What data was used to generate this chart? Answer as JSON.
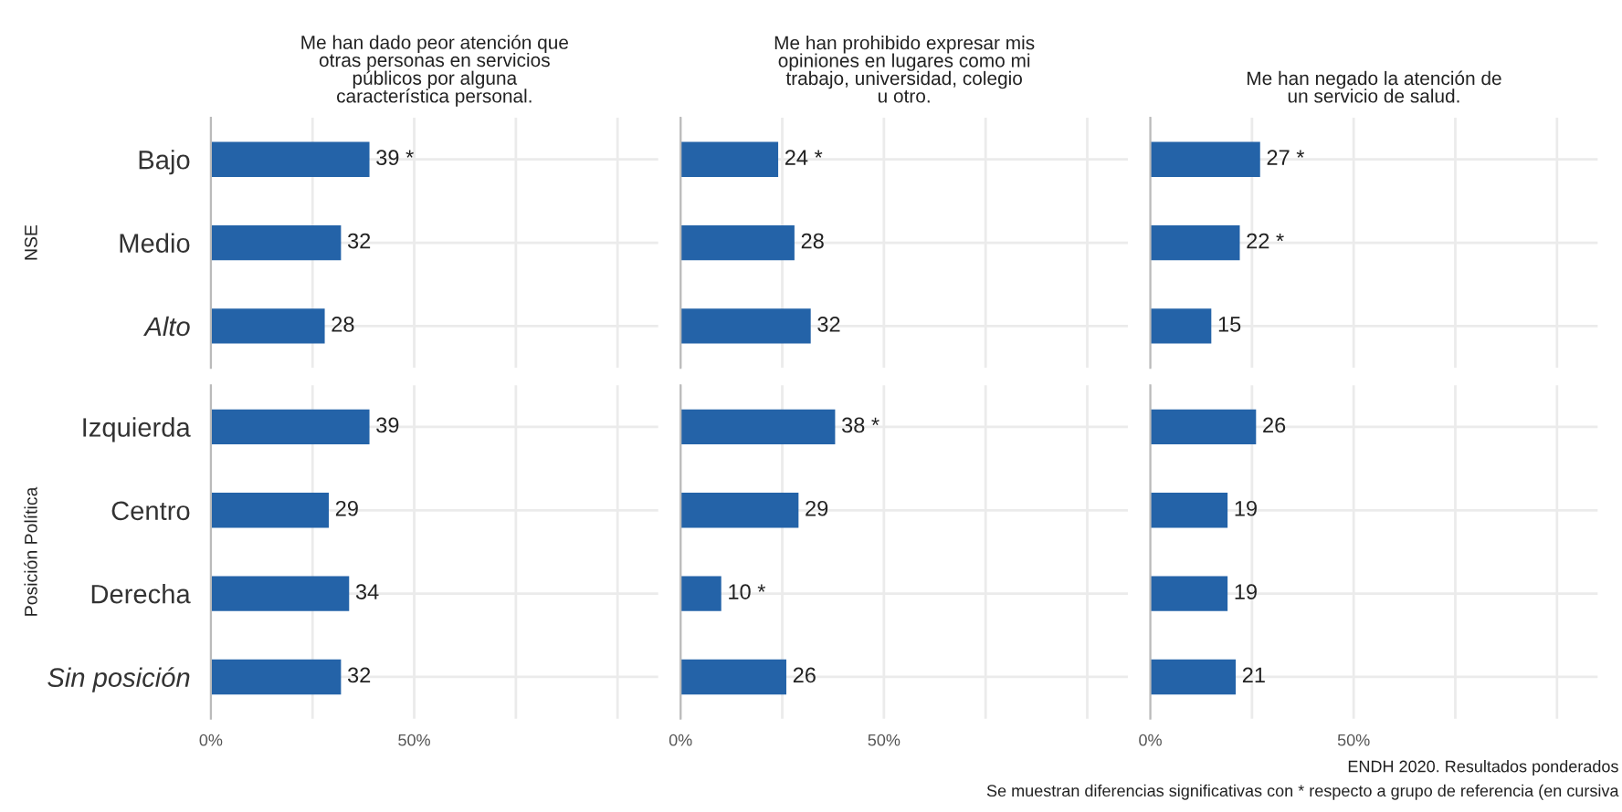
{
  "chart_data": [
    {
      "type": "bar",
      "orientation": "horizontal",
      "title": "Me han dado peor atención que\notras personas en servicios\npúblicos por alguna\ncaracterística personal.",
      "ylabel": "NSE",
      "categories": [
        "Bajo",
        "Medio",
        "Alto"
      ],
      "values": [
        39,
        32,
        28
      ],
      "value_labels": [
        "39 *",
        "32",
        "28"
      ],
      "color": "#2463a8",
      "xlim": [
        0,
        110
      ],
      "xticks": [
        {
          "value": 0,
          "label": null
        },
        {
          "value": 25,
          "label": null
        },
        {
          "value": 50,
          "label": null
        },
        {
          "value": 75,
          "label": null
        },
        {
          "value": 100,
          "label": null
        }
      ],
      "grid": true,
      "tick_labels": "y"
    },
    {
      "type": "bar",
      "orientation": "horizontal",
      "title": "Me han prohibido expresar mis\nopiniones en lugares como mi\ntrabajo, universidad, colegio\nu otro.",
      "categories": [
        null,
        null,
        null
      ],
      "values": [
        24,
        28,
        32
      ],
      "value_labels": [
        "24 *",
        "28",
        "32"
      ],
      "color": "#2463a8",
      "xlim": [
        0,
        110
      ],
      "xticks": [
        {
          "value": 0,
          "label": null
        },
        {
          "value": 25,
          "label": null
        },
        {
          "value": 50,
          "label": null
        },
        {
          "value": 75,
          "label": null
        },
        {
          "value": 100,
          "label": null
        }
      ],
      "grid": true,
      "tick_labels": false
    },
    {
      "type": "bar",
      "orientation": "horizontal",
      "title": "Me han negado la atención de\nun servicio de salud.",
      "categories": [
        null,
        null,
        null
      ],
      "values": [
        27,
        22,
        15
      ],
      "value_labels": [
        "27 *",
        "22 *",
        "15"
      ],
      "color": "#2463a8",
      "xlim": [
        0,
        110
      ],
      "xticks": [
        {
          "value": 0,
          "label": null
        },
        {
          "value": 25,
          "label": null
        },
        {
          "value": 50,
          "label": null
        },
        {
          "value": 75,
          "label": null
        },
        {
          "value": 100,
          "label": null
        }
      ],
      "grid": true,
      "tick_labels": false
    },
    {
      "type": "bar",
      "orientation": "horizontal",
      "ylabel": "Posición Política",
      "categories": [
        "Izquierda",
        "Centro",
        "Derecha",
        "Sin posición"
      ],
      "values": [
        39,
        29,
        34,
        32
      ],
      "value_labels": [
        "39",
        "29",
        "34",
        "32"
      ],
      "color": "#2463a8",
      "xlim": [
        0,
        110
      ],
      "xticks": [
        {
          "value": 0,
          "label": "0%"
        },
        {
          "value": 25,
          "label": null
        },
        {
          "value": 50,
          "label": "50%"
        },
        {
          "value": 75,
          "label": null
        },
        {
          "value": 100,
          "label": null
        }
      ],
      "grid": true
    },
    {
      "type": "bar",
      "orientation": "horizontal",
      "categories": [
        null,
        null,
        null,
        null
      ],
      "values": [
        38,
        29,
        10,
        26
      ],
      "value_labels": [
        "38 *",
        "29",
        "10 *",
        "26"
      ],
      "color": "#2463a8",
      "xlim": [
        0,
        110
      ],
      "xticks": [
        {
          "value": 0,
          "label": "0%"
        },
        {
          "value": 25,
          "label": null
        },
        {
          "value": 50,
          "label": "50%"
        },
        {
          "value": 75,
          "label": null
        },
        {
          "value": 100,
          "label": null
        }
      ],
      "grid": true,
      "tick_labels": "x"
    },
    {
      "type": "bar",
      "orientation": "horizontal",
      "categories": [
        null,
        null,
        null,
        null
      ],
      "values": [
        26,
        19,
        19,
        21
      ],
      "value_labels": [
        "26",
        "19",
        "19",
        "21"
      ],
      "color": "#2463a8",
      "xlim": [
        0,
        110
      ],
      "xticks": [
        {
          "value": 0,
          "label": "0%"
        },
        {
          "value": 25,
          "label": null
        },
        {
          "value": 50,
          "label": "50%"
        },
        {
          "value": 75,
          "label": null
        },
        {
          "value": 100,
          "label": null
        }
      ],
      "grid": true,
      "tick_labels": "x",
      "annotations": [
        "ENDH 2020. Resultados ponderados",
        "Se muestran diferencias significativas con * respecto a grupo de referencia (en cursiva"
      ]
    }
  ]
}
